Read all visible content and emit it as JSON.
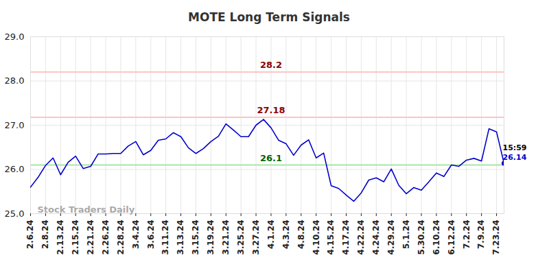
{
  "chart_data": {
    "type": "line",
    "title": "MOTE Long Term Signals",
    "categories": [
      "2.6.24",
      null,
      "2.8.24",
      null,
      "2.13.24",
      null,
      "2.15.24",
      null,
      "2.21.24",
      null,
      "2.26.24",
      null,
      "2.28.24",
      null,
      "3.4.24",
      null,
      "3.6.24",
      null,
      "3.11.24",
      null,
      "3.13.24",
      null,
      "3.15.24",
      null,
      "3.19.24",
      null,
      "3.21.24",
      null,
      "3.25.24",
      null,
      "3.27.24",
      null,
      "4.1.24",
      null,
      "4.3.24",
      null,
      "4.8.24",
      null,
      "4.10.24",
      null,
      "4.15.24",
      null,
      "4.17.24",
      null,
      "4.22.24",
      null,
      "4.24.24",
      null,
      "4.29.24",
      null,
      "5.1.24",
      null,
      "5.30.24",
      null,
      "6.10.24",
      null,
      "6.12.24",
      null,
      "7.2.24",
      null,
      "7.9.24",
      null,
      "7.23.24",
      null
    ],
    "values": [
      25.6,
      25.82,
      26.09,
      26.26,
      25.88,
      26.16,
      26.3,
      26.02,
      26.07,
      26.35,
      26.35,
      26.36,
      26.36,
      26.53,
      26.63,
      26.33,
      26.43,
      26.66,
      26.69,
      26.83,
      26.74,
      26.49,
      26.36,
      26.47,
      26.63,
      26.75,
      27.03,
      26.89,
      26.74,
      26.74,
      27.0,
      27.13,
      26.94,
      26.66,
      26.58,
      26.32,
      26.55,
      26.67,
      26.26,
      26.37,
      25.63,
      25.57,
      25.42,
      25.28,
      25.47,
      25.76,
      25.81,
      25.72,
      26.01,
      25.64,
      25.45,
      25.59,
      25.53,
      25.72,
      25.92,
      25.84,
      26.1,
      26.07,
      26.21,
      26.25,
      26.19,
      26.92,
      26.85,
      26.14
    ],
    "color": "#0000cc",
    "ylim": [
      25,
      29
    ],
    "yticks": [
      25,
      26,
      27,
      28,
      29
    ],
    "grid": true,
    "annotations": [
      {
        "y": 28.2,
        "text": "28.2",
        "line_color": "#ffc4c4",
        "color": "#8b0000"
      },
      {
        "y": 27.18,
        "text": "27.18",
        "line_color": "#ffc4c4",
        "color": "#8b0000"
      },
      {
        "y": 26.1,
        "text": "26.1",
        "line_color": "#a8e6a8",
        "color": "#006400"
      }
    ],
    "last_label": {
      "time": "15:59",
      "value": 26.14,
      "value_label": "26.14"
    },
    "watermark": "Stock Traders Daily"
  }
}
